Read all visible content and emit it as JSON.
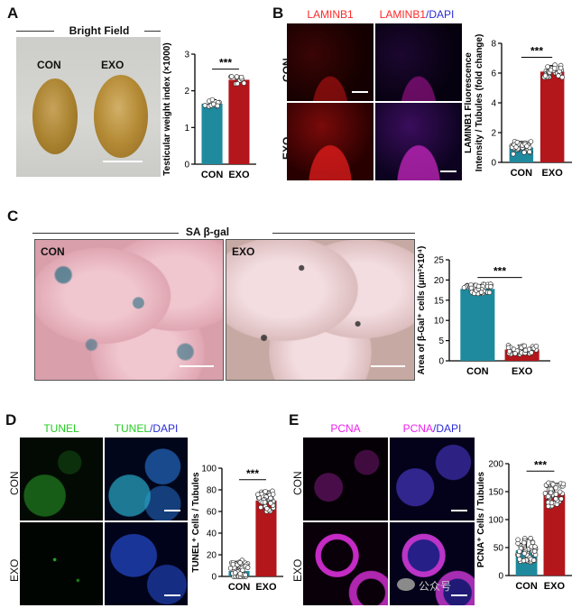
{
  "panels": {
    "A": {
      "label": "A",
      "header": "Bright Field",
      "img_labels": [
        "CON",
        "EXO"
      ],
      "chart": {
        "type": "bar",
        "categories": [
          "CON",
          "EXO"
        ],
        "values": [
          1.65,
          2.3
        ],
        "ylabel": "Testicular weight index (×1000)",
        "ylim": [
          0,
          3
        ],
        "yticks": [
          "0",
          "1",
          "2",
          "3"
        ],
        "significance": "***",
        "colors": [
          "#1f8a9e",
          "#b3161b"
        ],
        "n_points": 10,
        "spread": 0.12
      }
    },
    "B": {
      "label": "B",
      "col1": "LAMINB1",
      "col2a": "LAMINB1",
      "col2b": "/DAPI",
      "rows": [
        "CON",
        "EXO"
      ],
      "chart": {
        "type": "bar",
        "categories": [
          "CON",
          "EXO"
        ],
        "values": [
          1.0,
          6.1
        ],
        "ylabel1": "LAMINB1 Fluorescence",
        "ylabel2": "Intensity / Tubules (fold change)",
        "ylim": [
          0,
          8
        ],
        "yticks": [
          "0",
          "2",
          "4",
          "6",
          "8"
        ],
        "significance": "***",
        "colors": [
          "#1f8a9e",
          "#b3161b"
        ],
        "n_points": 30,
        "spread": 0.45
      }
    },
    "C": {
      "label": "C",
      "header": "SA β-gal",
      "img_labels": [
        "CON",
        "EXO"
      ],
      "chart": {
        "type": "bar",
        "categories": [
          "CON",
          "EXO"
        ],
        "values": [
          17.8,
          2.8
        ],
        "ylabel": "Area of β-Gal⁺ cells (μm²×10⁴)",
        "ylim": [
          0,
          25
        ],
        "yticks": [
          "0",
          "5",
          "10",
          "15",
          "20",
          "25"
        ],
        "significance": "***",
        "colors": [
          "#1f8a9e",
          "#b3161b"
        ],
        "n_points": 40,
        "spread": 1.2
      }
    },
    "D": {
      "label": "D",
      "col1": "TUNEL",
      "col2a": "TUNEL",
      "col2b": "/DAPI",
      "rows": [
        "CON",
        "EXO"
      ],
      "chart": {
        "type": "bar",
        "categories": [
          "CON",
          "EXO"
        ],
        "values": [
          5,
          70
        ],
        "ylabel": "TUNEL⁺ Cells / Tubules",
        "ylim": [
          0,
          100
        ],
        "yticks": [
          "0",
          "20",
          "40",
          "60",
          "80",
          "100"
        ],
        "significance": "***",
        "colors": [
          "#1f8a9e",
          "#b3161b"
        ],
        "n_points": 45,
        "spread": 10
      }
    },
    "E": {
      "label": "E",
      "col1": "PCNA",
      "col2a": "PCNA",
      "col2b": "/DAPI",
      "rows": [
        "CON",
        "EXO"
      ],
      "chart": {
        "type": "bar",
        "categories": [
          "CON",
          "EXO"
        ],
        "values": [
          45,
          145
        ],
        "ylabel": "PCNA⁺ Cells / Tubules",
        "ylim": [
          0,
          200
        ],
        "yticks": [
          "0",
          "50",
          "100",
          "150",
          "200"
        ],
        "significance": "***",
        "colors": [
          "#1f8a9e",
          "#b3161b"
        ],
        "n_points": 45,
        "spread": 22
      }
    }
  },
  "watermark": "公众号",
  "colors": {
    "laminb1": "#ff2a2a",
    "tunel": "#22dd22",
    "pcna": "#ff30ff",
    "dapi": "#3344ff"
  }
}
